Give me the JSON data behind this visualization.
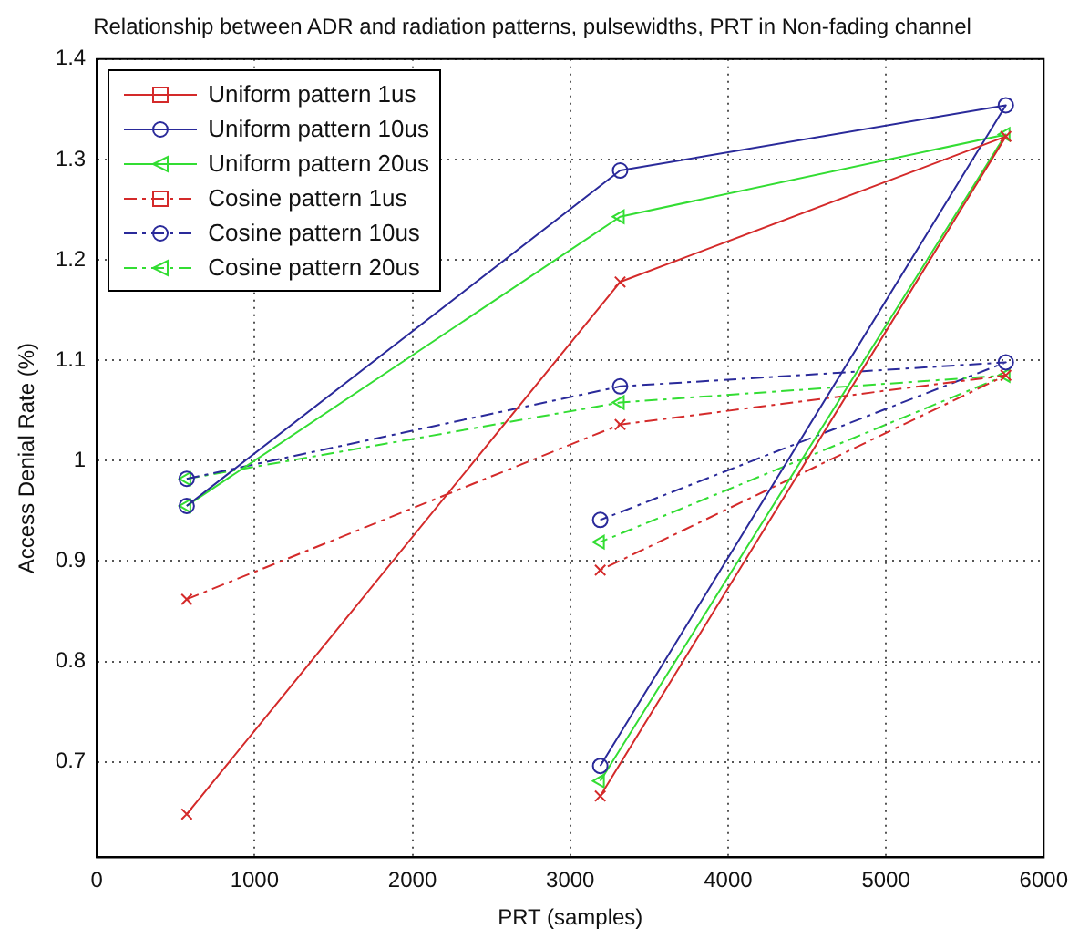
{
  "chart_data": {
    "type": "line",
    "title": "Relationship between ADR and radiation patterns, pulsewidths, PRT in Non-fading channel",
    "xlabel": "PRT (samples)",
    "ylabel": "Access Denial Rate (%)",
    "xlim": [
      0,
      6000
    ],
    "xticks": [
      0,
      1000,
      2000,
      3000,
      4000,
      5000,
      6000
    ],
    "ylim": [
      0.605,
      1.4
    ],
    "yticks": [
      0.7,
      0.8,
      0.9,
      1,
      1.1,
      1.2,
      1.3,
      1.4
    ],
    "grid": true,
    "legend": "top left",
    "series": [
      {
        "name": "Uniform pattern 1us",
        "color": "#d42a2a",
        "marker": "cross",
        "line_style": "solid",
        "x": [
          570,
          3316,
          5760,
          3190
        ],
        "values": [
          0.648,
          1.178,
          1.323,
          0.666
        ]
      },
      {
        "name": "Uniform pattern 10us",
        "color": "#2a2a9a",
        "marker": "circle",
        "line_style": "solid",
        "x": [
          570,
          3316,
          5760,
          3190
        ],
        "values": [
          0.955,
          1.289,
          1.354,
          0.696
        ]
      },
      {
        "name": "Uniform pattern 20us",
        "color": "#33dd33",
        "marker": "triangle",
        "line_style": "solid",
        "x": [
          570,
          3316,
          5760,
          3190
        ],
        "values": [
          0.955,
          1.243,
          1.325,
          0.681
        ]
      },
      {
        "name": "Cosine pattern 1us",
        "color": "#d42a2a",
        "marker": "cross",
        "line_style": "dashed",
        "x": [
          570,
          3316,
          5760,
          3190
        ],
        "values": [
          0.862,
          1.036,
          1.085,
          0.891
        ]
      },
      {
        "name": "Cosine pattern 10us",
        "color": "#2a2a9a",
        "marker": "circle",
        "line_style": "dashed",
        "x": [
          570,
          3316,
          5760,
          3190
        ],
        "values": [
          0.982,
          1.074,
          1.098,
          0.941
        ]
      },
      {
        "name": "Cosine pattern 20us",
        "color": "#33dd33",
        "marker": "triangle",
        "line_style": "dashed",
        "x": [
          570,
          3316,
          5760,
          3190
        ],
        "values": [
          0.982,
          1.058,
          1.085,
          0.919
        ]
      }
    ]
  }
}
